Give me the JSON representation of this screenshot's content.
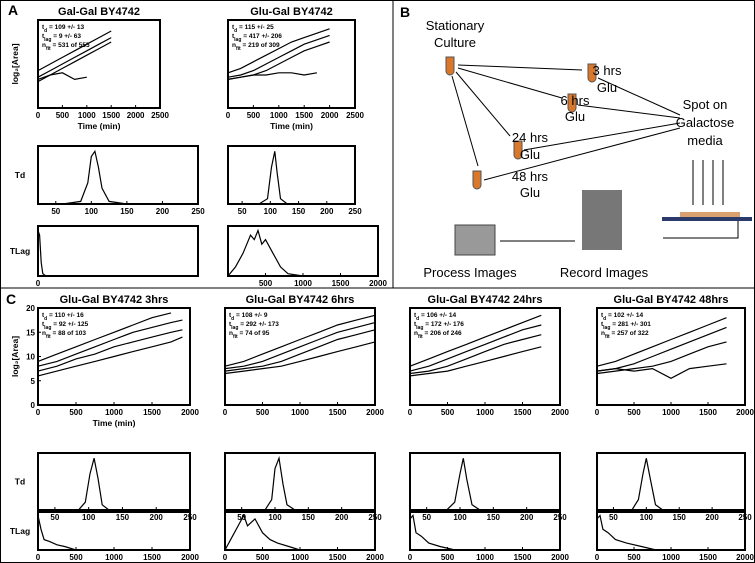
{
  "panels": {
    "a": "A",
    "b": "B",
    "c": "C"
  },
  "diagram": {
    "source": [
      "Stationary",
      "Culture"
    ],
    "steps": [
      [
        "3 hrs",
        "Glu"
      ],
      [
        "6 hrs",
        "Glu"
      ],
      [
        "24 hrs",
        "Glu"
      ],
      [
        "48 hrs",
        "Glu"
      ]
    ],
    "target": [
      "Spot on",
      "Galactose",
      "media"
    ],
    "record": "Record Images",
    "process": "Process Images"
  },
  "chart_data": [
    {
      "type": "line",
      "title": "Gal-Gal BY4742",
      "ylabel": "log₂[Area]",
      "xlabel": "Time (min)",
      "annotations": [
        [
          "t",
          "d",
          " = 109 +/- 13"
        ],
        [
          "t",
          "lag",
          " = 9 +/- 63"
        ],
        [
          "n",
          "fit",
          " = 531 of 555"
        ]
      ],
      "xlim": [
        0,
        2500
      ],
      "ylim": [
        0,
        20
      ],
      "xticks": [
        0,
        500,
        1000,
        1500,
        2000,
        2500
      ],
      "x": [
        0,
        250,
        500,
        750,
        1000,
        1250,
        1500
      ],
      "series": [
        {
          "color": "#000",
          "values": [
            8.5,
            10,
            11.5,
            13,
            14.5,
            16,
            17.5
          ]
        },
        {
          "color": "#000",
          "values": [
            7,
            8.5,
            10,
            11.5,
            13,
            14.5,
            16
          ]
        },
        {
          "color": "#000",
          "values": [
            6,
            7.5,
            9,
            10.5,
            12,
            13.5,
            15
          ]
        },
        {
          "color": "#000",
          "values": [
            6.5,
            7.5,
            8,
            6.5,
            7,
            null,
            null
          ]
        }
      ]
    },
    {
      "type": "line",
      "title": "Glu-Gal BY4742",
      "xlabel": "Time (min)",
      "annotations": [
        [
          "t",
          "d",
          " = 115 +/- 25"
        ],
        [
          "t",
          "lag",
          " = 417 +/- 206"
        ],
        [
          "n",
          "fit",
          " = 219 of 309"
        ]
      ],
      "xlim": [
        0,
        2500
      ],
      "ylim": [
        0,
        20
      ],
      "xticks": [
        0,
        500,
        1000,
        1500,
        2000,
        2500
      ],
      "x": [
        0,
        250,
        500,
        750,
        1000,
        1250,
        1500,
        1750,
        2000
      ],
      "series": [
        {
          "color": "#000",
          "values": [
            8,
            9,
            10.5,
            12,
            13.5,
            15,
            16,
            17,
            18
          ]
        },
        {
          "color": "#000",
          "values": [
            7,
            7.5,
            8.5,
            10,
            11.5,
            13,
            14.5,
            15.5,
            16.5
          ]
        },
        {
          "color": "#000",
          "values": [
            6.5,
            7,
            7.5,
            8.5,
            10,
            11.5,
            13,
            14,
            15
          ]
        },
        {
          "color": "#000",
          "values": [
            6.5,
            7,
            7.5,
            7.5,
            8,
            8,
            7.5,
            8,
            null
          ]
        }
      ]
    },
    {
      "type": "line",
      "ylabel": "Td",
      "xlim": [
        25,
        250
      ],
      "ylim": [
        0,
        1.1
      ],
      "xticks": [
        50,
        100,
        150,
        200,
        250
      ],
      "x": [
        25,
        60,
        85,
        95,
        100,
        105,
        110,
        115,
        125,
        150,
        250
      ],
      "series": [
        {
          "color": "#000",
          "values": [
            0,
            0,
            0.05,
            0.4,
            0.9,
            1,
            0.7,
            0.3,
            0.05,
            0,
            0
          ]
        }
      ]
    },
    {
      "type": "line",
      "xlim": [
        25,
        250
      ],
      "ylim": [
        0,
        1.1
      ],
      "xticks": [
        50,
        100,
        150,
        200,
        250
      ],
      "x": [
        25,
        80,
        95,
        102,
        108,
        112,
        118,
        130,
        250
      ],
      "series": [
        {
          "color": "#000",
          "values": [
            0,
            0,
            0.1,
            0.7,
            1,
            0.6,
            0.1,
            0,
            0
          ]
        }
      ]
    },
    {
      "type": "line",
      "ylabel": "TLag",
      "xlim": [
        0,
        2000
      ],
      "ylim": [
        0,
        1.1
      ],
      "xticks": [
        0
      ],
      "x": [
        0,
        20,
        40,
        60,
        100,
        300,
        2000
      ],
      "series": [
        {
          "color": "#000",
          "values": [
            1,
            0.9,
            0.3,
            0.05,
            0,
            0,
            0
          ]
        }
      ]
    },
    {
      "type": "line",
      "xlim": [
        0,
        2000
      ],
      "ylim": [
        0,
        1.1
      ],
      "xticks": [
        500,
        1000,
        1500,
        2000
      ],
      "x": [
        0,
        100,
        200,
        250,
        300,
        350,
        400,
        450,
        500,
        600,
        700,
        800,
        1000,
        2000
      ],
      "series": [
        {
          "color": "#000",
          "values": [
            0,
            0.2,
            0.5,
            0.7,
            0.9,
            0.8,
            1,
            0.7,
            0.8,
            0.5,
            0.2,
            0.05,
            0,
            0
          ]
        }
      ]
    },
    {
      "type": "line",
      "title": "Glu-Gal BY4742 3hrs",
      "ylabel": "log₂[Area]",
      "xlabel": "Time (min)",
      "annotations": [
        [
          "t",
          "d",
          " = 110 +/- 16"
        ],
        [
          "t",
          "lag",
          " = 92 +/- 125"
        ],
        [
          "n",
          "fit",
          " = 88 of 103"
        ]
      ],
      "xlim": [
        0,
        2000
      ],
      "ylim": [
        0,
        20
      ],
      "xticks": [
        0,
        500,
        1000,
        1500,
        2000
      ],
      "yticks": [
        0,
        5,
        10,
        15,
        20
      ],
      "x": [
        0,
        250,
        500,
        750,
        1000,
        1250,
        1500,
        1750,
        1900
      ],
      "series": [
        {
          "color": "#000",
          "values": [
            9,
            10.5,
            12,
            13.5,
            15,
            16.5,
            18,
            19,
            null
          ]
        },
        {
          "color": "#000",
          "values": [
            8,
            9,
            10.5,
            12,
            13.5,
            15,
            16,
            17,
            17.5
          ]
        },
        {
          "color": "#000",
          "values": [
            7,
            8,
            9.5,
            10.5,
            12,
            13,
            14,
            15,
            15.5
          ]
        },
        {
          "color": "#000",
          "values": [
            6,
            7,
            8,
            9,
            10,
            11,
            12,
            13,
            14
          ]
        }
      ]
    },
    {
      "type": "line",
      "title": "Glu-Gal BY4742 6hrs",
      "annotations": [
        [
          "t",
          "d",
          " = 108 +/- 9"
        ],
        [
          "t",
          "lag",
          " = 292 +/- 173"
        ],
        [
          "n",
          "fit",
          " = 74 of 95"
        ]
      ],
      "xlim": [
        0,
        2000
      ],
      "ylim": [
        0,
        20
      ],
      "xticks": [
        0,
        500,
        1000,
        1500,
        2000
      ],
      "x": [
        0,
        250,
        500,
        750,
        1000,
        1250,
        1500,
        1750,
        2000
      ],
      "series": [
        {
          "color": "#000",
          "values": [
            8,
            9,
            10.5,
            12,
            13.5,
            15,
            16.5,
            17.5,
            18.5
          ]
        },
        {
          "color": "#000",
          "values": [
            7.5,
            8,
            9,
            10.5,
            12,
            13.5,
            15,
            16,
            17
          ]
        },
        {
          "color": "#000",
          "values": [
            7,
            7.5,
            8,
            9,
            10.5,
            12,
            13.5,
            14.5,
            15.5
          ]
        },
        {
          "color": "#000",
          "values": [
            6.5,
            7,
            7.5,
            8,
            9,
            10,
            11,
            12,
            13
          ]
        }
      ]
    },
    {
      "type": "line",
      "title": "Glu-Gal BY4742 24hrs",
      "annotations": [
        [
          "t",
          "d",
          " = 106 +/- 14"
        ],
        [
          "t",
          "lag",
          " = 172 +/- 176"
        ],
        [
          "n",
          "fit",
          " = 206 of 246"
        ]
      ],
      "xlim": [
        0,
        2000
      ],
      "ylim": [
        0,
        20
      ],
      "xticks": [
        0,
        500,
        1000,
        1500,
        2000
      ],
      "x": [
        0,
        250,
        500,
        750,
        1000,
        1250,
        1500,
        1750
      ],
      "series": [
        {
          "color": "#000",
          "values": [
            8,
            9.5,
            11,
            12.5,
            14,
            15.5,
            17,
            18.5
          ]
        },
        {
          "color": "#000",
          "values": [
            7,
            8,
            9.5,
            11,
            12.5,
            14,
            15.5,
            16.5
          ]
        },
        {
          "color": "#000",
          "values": [
            6.5,
            7,
            8,
            9.5,
            11,
            12.5,
            13.5,
            14.5
          ]
        },
        {
          "color": "#000",
          "values": [
            6,
            6.5,
            7,
            8,
            9,
            10,
            11,
            12
          ]
        }
      ]
    },
    {
      "type": "line",
      "title": "Glu-Gal BY4742 48hrs",
      "annotations": [
        [
          "t",
          "d",
          " = 102 +/- 14"
        ],
        [
          "t",
          "lag",
          " = 281 +/- 301"
        ],
        [
          "n",
          "fit",
          " = 257 of 322"
        ]
      ],
      "xlim": [
        0,
        2000
      ],
      "ylim": [
        0,
        20
      ],
      "xticks": [
        0,
        500,
        1000,
        1500,
        2000
      ],
      "x": [
        0,
        250,
        500,
        750,
        1000,
        1250,
        1500,
        1750
      ],
      "series": [
        {
          "color": "#000",
          "values": [
            8,
            9,
            10.5,
            12,
            13.5,
            15,
            16.5,
            18
          ]
        },
        {
          "color": "#000",
          "values": [
            7,
            7.5,
            8.5,
            10,
            11.5,
            13,
            14.5,
            16
          ]
        },
        {
          "color": "#000",
          "values": [
            6.5,
            7,
            7.5,
            8,
            9,
            10.5,
            12,
            13
          ]
        },
        {
          "color": "#000",
          "values": [
            7,
            7.5,
            7,
            7.5,
            5.5,
            7.5,
            8,
            8.5
          ]
        }
      ]
    },
    {
      "type": "line",
      "ylabel": "Td",
      "xlim": [
        25,
        250
      ],
      "ylim": [
        0,
        1.1
      ],
      "xticks": [
        50,
        100,
        150,
        200,
        250
      ],
      "x": [
        25,
        85,
        95,
        102,
        108,
        114,
        120,
        130,
        250
      ],
      "series": [
        {
          "color": "#000",
          "values": [
            0,
            0,
            0.15,
            0.7,
            1,
            0.6,
            0.1,
            0,
            0
          ]
        }
      ]
    },
    {
      "type": "line",
      "xlim": [
        25,
        250
      ],
      "ylim": [
        0,
        1.1
      ],
      "xticks": [
        50,
        100,
        150,
        200,
        250
      ],
      "x": [
        25,
        85,
        95,
        100,
        106,
        112,
        118,
        130,
        250
      ],
      "series": [
        {
          "color": "#000",
          "values": [
            0,
            0,
            0.2,
            0.8,
            1,
            0.5,
            0.1,
            0,
            0
          ]
        }
      ]
    },
    {
      "type": "line",
      "xlim": [
        25,
        250
      ],
      "ylim": [
        0,
        1.1
      ],
      "xticks": [
        50,
        100,
        150,
        200,
        250
      ],
      "x": [
        25,
        80,
        92,
        100,
        105,
        110,
        118,
        130,
        250
      ],
      "series": [
        {
          "color": "#000",
          "values": [
            0,
            0,
            0.15,
            0.7,
            1,
            0.6,
            0.1,
            0,
            0
          ]
        }
      ]
    },
    {
      "type": "line",
      "xlim": [
        25,
        250
      ],
      "ylim": [
        0,
        1.1
      ],
      "xticks": [
        50,
        100,
        150,
        200,
        250
      ],
      "x": [
        25,
        78,
        88,
        95,
        100,
        106,
        114,
        125,
        250
      ],
      "series": [
        {
          "color": "#000",
          "values": [
            0,
            0,
            0.2,
            0.7,
            1,
            0.6,
            0.1,
            0,
            0
          ]
        }
      ]
    },
    {
      "type": "line",
      "ylabel": "TLag",
      "xlim": [
        0,
        2000
      ],
      "ylim": [
        0,
        1.1
      ],
      "xticks": [
        0,
        500,
        1000,
        1500,
        2000
      ],
      "x": [
        0,
        40,
        80,
        150,
        250,
        350,
        500,
        2000
      ],
      "series": [
        {
          "color": "#000",
          "values": [
            1,
            0.6,
            0.3,
            0.25,
            0.15,
            0.1,
            0,
            0
          ]
        }
      ]
    },
    {
      "type": "line",
      "xlim": [
        0,
        2000
      ],
      "ylim": [
        0,
        1.1
      ],
      "xticks": [
        0,
        500,
        1000,
        1500,
        2000
      ],
      "x": [
        0,
        100,
        200,
        250,
        300,
        400,
        500,
        600,
        700,
        850,
        1000,
        2000
      ],
      "series": [
        {
          "color": "#000",
          "values": [
            0,
            0.4,
            0.8,
            1,
            0.7,
            0.9,
            0.5,
            0.3,
            0.2,
            0.1,
            0,
            0
          ]
        }
      ]
    },
    {
      "type": "line",
      "xlim": [
        0,
        2000
      ],
      "ylim": [
        0,
        1.1
      ],
      "xticks": [
        0,
        500,
        1000,
        1500,
        2000
      ],
      "x": [
        0,
        40,
        80,
        150,
        250,
        400,
        600,
        2000
      ],
      "series": [
        {
          "color": "#000",
          "values": [
            0.9,
            1,
            0.5,
            0.4,
            0.2,
            0.1,
            0,
            0
          ]
        }
      ]
    },
    {
      "type": "line",
      "xlim": [
        0,
        2000
      ],
      "ylim": [
        0,
        1.1
      ],
      "xticks": [
        0,
        500,
        1000,
        1500,
        2000
      ],
      "x": [
        0,
        40,
        80,
        150,
        250,
        400,
        600,
        800,
        2000
      ],
      "series": [
        {
          "color": "#000",
          "values": [
            0.9,
            1,
            0.6,
            0.5,
            0.3,
            0.2,
            0.1,
            0,
            0
          ]
        }
      ]
    }
  ]
}
